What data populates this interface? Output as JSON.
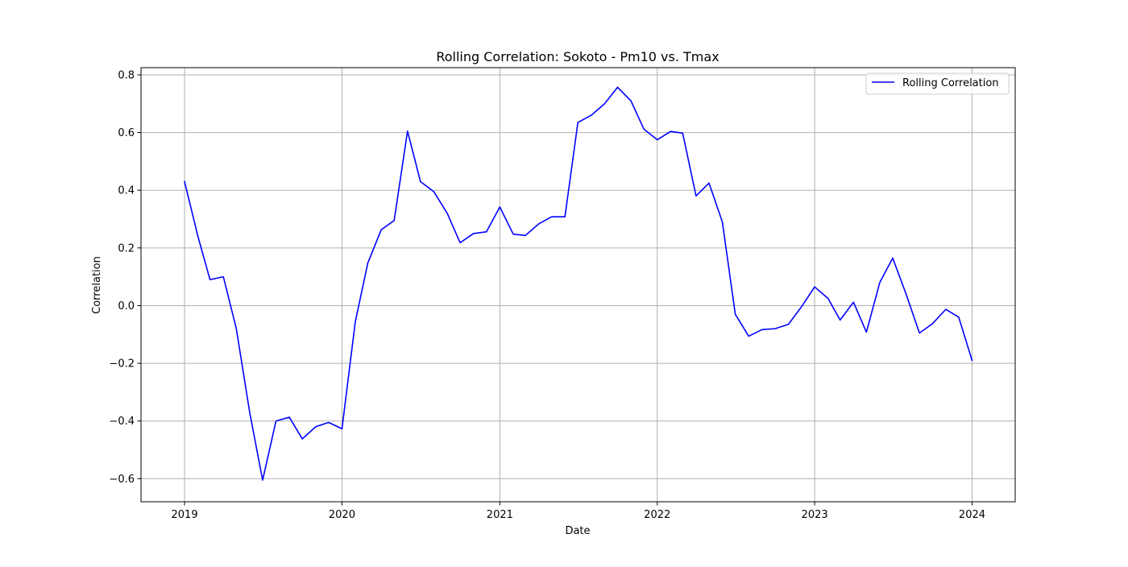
{
  "chart_data": {
    "type": "line",
    "title": "Rolling Correlation: Sokoto - Pm10 vs. Tmax",
    "xlabel": "Date",
    "ylabel": "Correlation",
    "xlim": [
      "2018-09-22",
      "2024-04-10"
    ],
    "ylim": [
      -0.68,
      0.825
    ],
    "x_ticks": [
      "2019",
      "2020",
      "2021",
      "2022",
      "2023",
      "2024"
    ],
    "y_ticks": [
      "−0.6",
      "−0.4",
      "−0.2",
      "0.0",
      "0.2",
      "0.4",
      "0.6",
      "0.8"
    ],
    "grid": true,
    "legend_position": "top-right",
    "colors": {
      "line": "#0000ff",
      "grid": "#b0b0b0"
    },
    "x": [
      "2019-01-01",
      "2019-02-01",
      "2019-03-01",
      "2019-04-01",
      "2019-05-01",
      "2019-06-01",
      "2019-07-01",
      "2019-08-01",
      "2019-09-01",
      "2019-10-01",
      "2019-11-01",
      "2019-12-01",
      "2020-01-01",
      "2020-02-01",
      "2020-03-01",
      "2020-04-01",
      "2020-05-01",
      "2020-06-01",
      "2020-07-01",
      "2020-08-01",
      "2020-09-01",
      "2020-10-01",
      "2020-11-01",
      "2020-12-01",
      "2021-01-01",
      "2021-02-01",
      "2021-03-01",
      "2021-04-01",
      "2021-05-01",
      "2021-06-01",
      "2021-07-01",
      "2021-08-01",
      "2021-09-01",
      "2021-10-01",
      "2021-11-01",
      "2021-12-01",
      "2022-01-01",
      "2022-02-01",
      "2022-03-01",
      "2022-04-01",
      "2022-05-01",
      "2022-06-01",
      "2022-07-01",
      "2022-08-01",
      "2022-09-01",
      "2022-10-01",
      "2022-11-01",
      "2022-12-01",
      "2023-01-01",
      "2023-02-01",
      "2023-03-01",
      "2023-04-01",
      "2023-05-01",
      "2023-06-01",
      "2023-07-01",
      "2023-08-01",
      "2023-09-01",
      "2023-10-01",
      "2023-11-01",
      "2023-12-01",
      "2024-01-01"
    ],
    "series": [
      {
        "name": "Rolling Correlation",
        "values": [
          0.43,
          0.24,
          0.09,
          0.1,
          -0.08,
          -0.37,
          -0.605,
          -0.4,
          -0.387,
          -0.462,
          -0.42,
          -0.405,
          -0.427,
          -0.055,
          0.148,
          0.263,
          0.295,
          0.605,
          0.43,
          0.395,
          0.32,
          0.218,
          0.25,
          0.256,
          0.342,
          0.248,
          0.243,
          0.283,
          0.308,
          0.308,
          0.635,
          0.66,
          0.7,
          0.757,
          0.71,
          0.612,
          0.575,
          0.604,
          0.598,
          0.38,
          0.425,
          0.29,
          -0.03,
          -0.106,
          -0.083,
          -0.08,
          -0.065,
          -0.005,
          0.065,
          0.025,
          -0.05,
          0.012,
          -0.092,
          0.08,
          0.165,
          0.04,
          -0.095,
          -0.063,
          -0.013,
          -0.04,
          -0.19
        ]
      }
    ]
  }
}
